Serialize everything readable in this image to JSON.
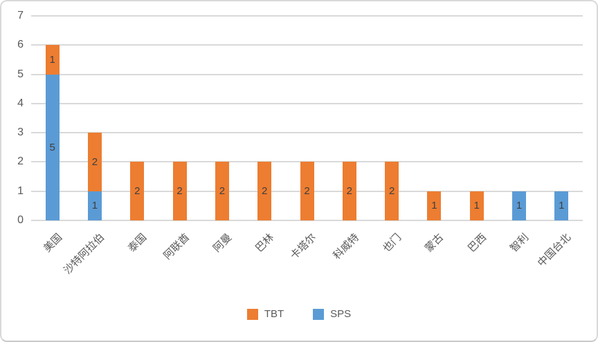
{
  "chart_data": {
    "type": "bar",
    "stacked": true,
    "title": "",
    "categories": [
      "美国",
      "沙特阿拉伯",
      "泰国",
      "阿联酋",
      "阿曼",
      "巴林",
      "卡塔尔",
      "科威特",
      "也门",
      "蒙古",
      "巴西",
      "智利",
      "中国台北"
    ],
    "series": [
      {
        "name": "SPS",
        "color": "#5B9BD5",
        "values": [
          5,
          1,
          0,
          0,
          0,
          0,
          0,
          0,
          0,
          0,
          0,
          1,
          1
        ]
      },
      {
        "name": "TBT",
        "color": "#ED7D31",
        "values": [
          1,
          2,
          2,
          2,
          2,
          2,
          2,
          2,
          2,
          1,
          1,
          0,
          0
        ]
      }
    ],
    "stack_order_bottom_to_top": [
      "SPS",
      "TBT"
    ],
    "totals": [
      6,
      3,
      2,
      2,
      2,
      2,
      2,
      2,
      2,
      1,
      1,
      1,
      1
    ],
    "data_labels": true,
    "y_axis": {
      "min": 0,
      "max": 7,
      "tick_step": 1,
      "ticks": [
        "0",
        "1",
        "2",
        "3",
        "4",
        "5",
        "6",
        "7"
      ]
    },
    "x_axis": {
      "label_rotation_deg": -45
    },
    "grid": true,
    "legend": {
      "position": "bottom",
      "entries": [
        {
          "label": "TBT",
          "color": "#ED7D31"
        },
        {
          "label": "SPS",
          "color": "#5B9BD5"
        }
      ]
    },
    "colors": {
      "grid": "#D9D9D9",
      "axis_text": "#595959",
      "data_label": "#3F3F3F",
      "frame_border": "#D9D9D9"
    }
  }
}
